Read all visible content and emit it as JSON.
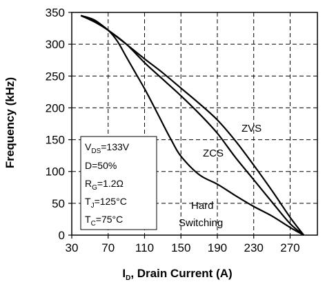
{
  "chart_data": {
    "type": "line",
    "xlabel": {
      "main": "I",
      "sub": "D",
      "rest": ", Drain Current (A)"
    },
    "ylabel": "Frequency (kHz)",
    "xlim": [
      30,
      300
    ],
    "ylim": [
      0,
      350
    ],
    "xticks": [
      30,
      70,
      110,
      150,
      190,
      230,
      270
    ],
    "yticks": [
      0,
      50,
      100,
      150,
      200,
      250,
      300,
      350
    ],
    "grid": "dashed",
    "series": [
      {
        "name": "ZVS",
        "x": [
          40,
          55,
          70,
          90,
          110,
          130,
          150,
          170,
          190,
          210,
          230,
          250,
          270,
          285
        ],
        "y": [
          345,
          338,
          322,
          300,
          277,
          255,
          231,
          207,
          181,
          148,
          110,
          70,
          28,
          0
        ]
      },
      {
        "name": "ZCS",
        "x": [
          40,
          55,
          70,
          90,
          110,
          130,
          150,
          170,
          190,
          210,
          230,
          250,
          270,
          285
        ],
        "y": [
          345,
          335,
          322,
          300,
          271,
          245,
          219,
          191,
          160,
          122,
          87,
          52,
          18,
          0
        ]
      },
      {
        "name": "Hard Switching",
        "x": [
          40,
          55,
          70,
          80,
          90,
          100,
          110,
          120,
          130,
          140,
          150,
          170,
          190,
          210,
          230,
          250,
          270,
          285
        ],
        "y": [
          345,
          337,
          322,
          305,
          280,
          255,
          230,
          203,
          175,
          148,
          124,
          95,
          80,
          62,
          45,
          30,
          12,
          0
        ]
      }
    ],
    "annotations": [
      {
        "text": "ZVS"
      },
      {
        "text": "ZCS"
      },
      {
        "text": "Hard"
      },
      {
        "text": "Switching"
      }
    ],
    "conditions": [
      {
        "main": "V",
        "sub": "DS",
        "rest": "=133V"
      },
      {
        "main": "D=50%",
        "sub": "",
        "rest": ""
      },
      {
        "main": "R",
        "sub": "G",
        "rest": "=1.2Ω"
      },
      {
        "main": "T",
        "sub": "J",
        "rest": "=125°C"
      },
      {
        "main": "T",
        "sub": "C",
        "rest": "=75°C"
      }
    ]
  }
}
